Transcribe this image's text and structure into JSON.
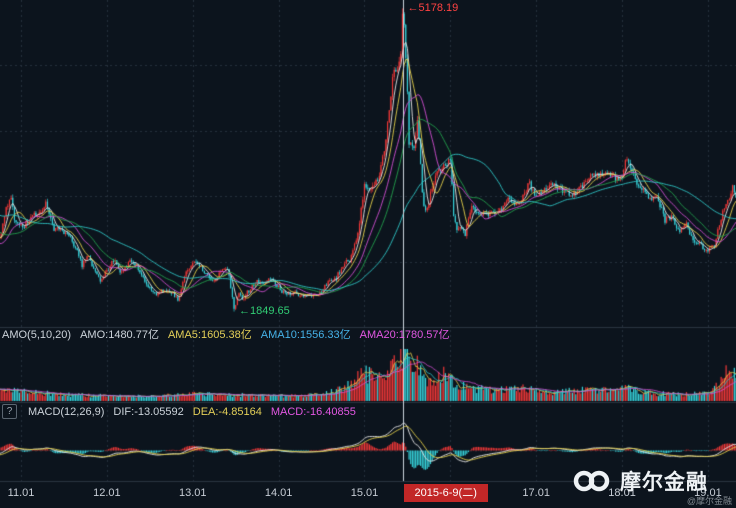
{
  "colors": {
    "background": "#0c141d",
    "grid": "#26303c",
    "separator": "#2a3440",
    "up": "#f03737",
    "down": "#36d2da",
    "ma5": "#e9e9e9",
    "ma10": "#e8d24b",
    "ma20": "#d44fd4",
    "ma30": "#23a14d",
    "ma60": "#2fc8c8",
    "dif_line": "#e9e9e9",
    "dea_line": "#e8d24b",
    "crosshair": "#cdd6de",
    "text": "#ccd3da",
    "text_yellow": "#e3cf58",
    "text_blue": "#46b2e8",
    "text_magenta": "#e257e2",
    "peak_red": "#ff4242",
    "low_green": "#31cd74",
    "badge_bg": "#c22727",
    "badge_text": "#ffffff",
    "tick_text": "#c6ccd4",
    "brand_text": "#eef2f5",
    "handle_text": "#80888f",
    "help_border": "#5a6570"
  },
  "annotations": {
    "peak": {
      "arrow": "←",
      "text": "5178.19"
    },
    "low": {
      "arrow": "←",
      "text": "1849.65"
    }
  },
  "amo_row": {
    "indicator": "AMO(5,10,20)",
    "amo": "AMO:1480.77亿",
    "ama5": "AMA5:1605.38亿",
    "ama10": "AMA10:1556.33亿",
    "ama20": "AMA20:1780.57亿"
  },
  "macd_row": {
    "help": "?",
    "indicator": "MACD(12,26,9)",
    "dif": "DIF:-13.05592",
    "dea": "DEA:-4.85164",
    "macd": "MACD:-16.40855"
  },
  "xaxis": {
    "ticks": [
      {
        "label": "11.01",
        "t": 2011
      },
      {
        "label": "12.01",
        "t": 2012
      },
      {
        "label": "13.01",
        "t": 2013
      },
      {
        "label": "14.01",
        "t": 2014
      },
      {
        "label": "15.01",
        "t": 2015
      },
      {
        "label": "17.01",
        "t": 2017
      },
      {
        "label": "18.01",
        "t": 2018
      },
      {
        "label": "19.01",
        "t": 2019
      }
    ],
    "selected_date": "2015-6-9(二)"
  },
  "watermark": {
    "brand": "摩尔金融",
    "handle": "@摩尔金融"
  },
  "chart_data": {
    "type": "candlestick",
    "period": "weekly",
    "x_range": [
      2010.755,
      2019.327
    ],
    "price_range": [
      1680,
      5270
    ],
    "gen_start": 2009.5,
    "crosshair_t": 2015.45,
    "grid_years": [
      2011,
      2012,
      2013,
      2014,
      2015,
      2016,
      2017,
      2018,
      2019
    ],
    "markers": {
      "peak": {
        "t": 2015.45,
        "price": 5178.19
      },
      "low": {
        "t": 2013.48,
        "price": 1849.65
      }
    },
    "ma_periods": [
      5,
      10,
      20,
      30,
      60
    ],
    "amo_periods": [
      5,
      10,
      20
    ],
    "macd_params": [
      12,
      26,
      9
    ],
    "price_anchors": [
      [
        2009.5,
        3008
      ],
      [
        2009.58,
        3412
      ],
      [
        2009.67,
        2779
      ],
      [
        2009.75,
        2995
      ],
      [
        2009.83,
        3195
      ],
      [
        2009.92,
        3277
      ],
      [
        2010.0,
        3244
      ],
      [
        2010.08,
        2989
      ],
      [
        2010.17,
        3052
      ],
      [
        2010.25,
        3109
      ],
      [
        2010.33,
        2871
      ],
      [
        2010.42,
        2592
      ],
      [
        2010.5,
        2398
      ],
      [
        2010.58,
        2638
      ],
      [
        2010.67,
        2656
      ],
      [
        2010.75,
        2656
      ],
      [
        2010.83,
        2979
      ],
      [
        2010.88,
        3160
      ],
      [
        2010.92,
        2842
      ],
      [
        2011.0,
        2808
      ],
      [
        2011.04,
        2790
      ],
      [
        2011.13,
        2905
      ],
      [
        2011.21,
        2928
      ],
      [
        2011.29,
        3050
      ],
      [
        2011.38,
        2743
      ],
      [
        2011.46,
        2762
      ],
      [
        2011.54,
        2701
      ],
      [
        2011.63,
        2567
      ],
      [
        2011.71,
        2359
      ],
      [
        2011.79,
        2468
      ],
      [
        2011.83,
        2333
      ],
      [
        2011.92,
        2199
      ],
      [
        2012.0,
        2293
      ],
      [
        2012.08,
        2428
      ],
      [
        2012.17,
        2263
      ],
      [
        2012.25,
        2396
      ],
      [
        2012.33,
        2372
      ],
      [
        2012.42,
        2225
      ],
      [
        2012.5,
        2103
      ],
      [
        2012.58,
        2047
      ],
      [
        2012.67,
        2086
      ],
      [
        2012.75,
        2068
      ],
      [
        2012.83,
        1980
      ],
      [
        2012.92,
        2269
      ],
      [
        2013.0,
        2385
      ],
      [
        2013.08,
        2366
      ],
      [
        2013.17,
        2237
      ],
      [
        2013.25,
        2177
      ],
      [
        2013.33,
        2301
      ],
      [
        2013.42,
        2290
      ],
      [
        2013.48,
        1865
      ],
      [
        2013.54,
        2073
      ],
      [
        2013.58,
        1994
      ],
      [
        2013.67,
        2098
      ],
      [
        2013.75,
        2175
      ],
      [
        2013.83,
        2141
      ],
      [
        2013.92,
        2221
      ],
      [
        2014.0,
        2116
      ],
      [
        2014.08,
        2033
      ],
      [
        2014.17,
        2056
      ],
      [
        2014.25,
        2033
      ],
      [
        2014.33,
        2026
      ],
      [
        2014.42,
        2039
      ],
      [
        2014.5,
        2048
      ],
      [
        2014.58,
        2201
      ],
      [
        2014.67,
        2217
      ],
      [
        2014.75,
        2363
      ],
      [
        2014.83,
        2420
      ],
      [
        2014.92,
        2683
      ],
      [
        2015.0,
        3235
      ],
      [
        2015.08,
        3210
      ],
      [
        2015.17,
        3310
      ],
      [
        2015.25,
        3748
      ],
      [
        2015.33,
        4442
      ],
      [
        2015.42,
        4612
      ],
      [
        2015.45,
        5166
      ],
      [
        2015.5,
        4277
      ],
      [
        2015.52,
        3687
      ],
      [
        2015.58,
        3664
      ],
      [
        2015.62,
        3965
      ],
      [
        2015.67,
        3206
      ],
      [
        2015.7,
        2927
      ],
      [
        2015.75,
        3053
      ],
      [
        2015.83,
        3383
      ],
      [
        2015.92,
        3445
      ],
      [
        2016.0,
        3539
      ],
      [
        2016.04,
        2900
      ],
      [
        2016.08,
        2738
      ],
      [
        2016.13,
        2763
      ],
      [
        2016.17,
        2688
      ],
      [
        2016.25,
        3004
      ],
      [
        2016.33,
        2938
      ],
      [
        2016.42,
        2917
      ],
      [
        2016.5,
        2930
      ],
      [
        2016.58,
        2979
      ],
      [
        2016.67,
        3085
      ],
      [
        2016.75,
        3005
      ],
      [
        2016.83,
        3100
      ],
      [
        2016.92,
        3250
      ],
      [
        2017.0,
        3104
      ],
      [
        2017.08,
        3159
      ],
      [
        2017.17,
        3242
      ],
      [
        2017.25,
        3223
      ],
      [
        2017.33,
        3155
      ],
      [
        2017.42,
        3117
      ],
      [
        2017.5,
        3192
      ],
      [
        2017.58,
        3273
      ],
      [
        2017.67,
        3361
      ],
      [
        2017.75,
        3349
      ],
      [
        2017.83,
        3393
      ],
      [
        2017.92,
        3317
      ],
      [
        2018.0,
        3307
      ],
      [
        2018.04,
        3559
      ],
      [
        2018.08,
        3481
      ],
      [
        2018.17,
        3259
      ],
      [
        2018.25,
        3169
      ],
      [
        2018.33,
        3082
      ],
      [
        2018.42,
        3095
      ],
      [
        2018.5,
        2847
      ],
      [
        2018.58,
        2876
      ],
      [
        2018.67,
        2725
      ],
      [
        2018.75,
        2821
      ],
      [
        2018.83,
        2603
      ],
      [
        2018.92,
        2588
      ],
      [
        2019.0,
        2494
      ],
      [
        2019.04,
        2560
      ],
      [
        2019.08,
        2585
      ],
      [
        2019.17,
        2941
      ],
      [
        2019.25,
        3091
      ],
      [
        2019.29,
        3270
      ],
      [
        2019.33,
        3078
      ]
    ],
    "volume_anchors": [
      [
        2009.5,
        0.2
      ],
      [
        2010.3,
        0.24
      ],
      [
        2010.75,
        0.22
      ],
      [
        2011.0,
        0.18
      ],
      [
        2011.5,
        0.13
      ],
      [
        2012.0,
        0.1
      ],
      [
        2012.5,
        0.09
      ],
      [
        2013.0,
        0.14
      ],
      [
        2013.5,
        0.12
      ],
      [
        2014.0,
        0.1
      ],
      [
        2014.5,
        0.12
      ],
      [
        2014.83,
        0.3
      ],
      [
        2015.0,
        0.55
      ],
      [
        2015.17,
        0.5
      ],
      [
        2015.33,
        0.75
      ],
      [
        2015.45,
        1.0
      ],
      [
        2015.5,
        0.9
      ],
      [
        2015.58,
        0.72
      ],
      [
        2015.67,
        0.55
      ],
      [
        2015.75,
        0.38
      ],
      [
        2015.92,
        0.5
      ],
      [
        2016.0,
        0.42
      ],
      [
        2016.08,
        0.32
      ],
      [
        2016.25,
        0.26
      ],
      [
        2016.5,
        0.2
      ],
      [
        2016.83,
        0.27
      ],
      [
        2017.0,
        0.2
      ],
      [
        2017.25,
        0.17
      ],
      [
        2017.58,
        0.22
      ],
      [
        2017.83,
        0.2
      ],
      [
        2018.08,
        0.25
      ],
      [
        2018.33,
        0.16
      ],
      [
        2018.58,
        0.13
      ],
      [
        2018.83,
        0.15
      ],
      [
        2019.0,
        0.14
      ],
      [
        2019.17,
        0.45
      ],
      [
        2019.25,
        0.58
      ],
      [
        2019.33,
        0.48
      ]
    ]
  }
}
